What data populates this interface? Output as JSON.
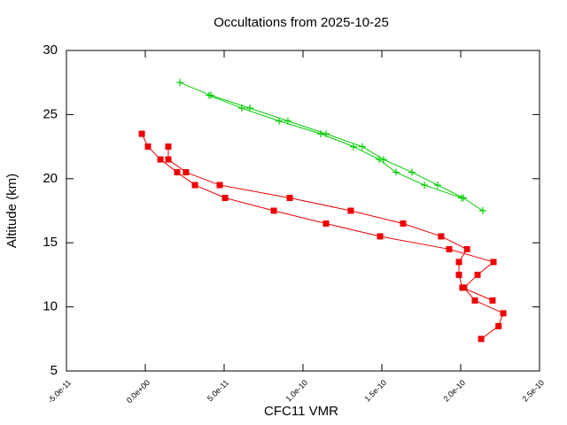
{
  "chart_data": {
    "type": "line",
    "title": "Occultations from 2025-10-25",
    "x_label": "CFC11 VMR",
    "y_label": "Altitude (km)",
    "xlim": [
      -5e-11,
      2.5e-10
    ],
    "xticks": [
      {
        "value": -5e-11,
        "label": "-5.0e-11"
      },
      {
        "value": 0,
        "label": "0.0e+00"
      },
      {
        "value": 5e-11,
        "label": "5.0e-11"
      },
      {
        "value": 1e-10,
        "label": "1.0e-10"
      },
      {
        "value": 1.5e-10,
        "label": "1.5e-10"
      },
      {
        "value": 2e-10,
        "label": "2.0e-10"
      },
      {
        "value": 2.5e-10,
        "label": "2.5e-10"
      }
    ],
    "ylim": [
      5,
      30
    ],
    "yticks": [
      5,
      10,
      15,
      20,
      25,
      30
    ],
    "grid": false,
    "series": [
      {
        "color": "#ee0000",
        "marker": "square",
        "x": [
          -2.2e-12,
          1.7e-12,
          9.6e-12,
          2.02e-11,
          3.15e-11,
          5.06e-11,
          8.15e-11,
          1.146e-10,
          1.489e-10,
          1.927e-10,
          2.208e-10,
          2.107e-10,
          2.022e-10,
          2.09e-10,
          2.27e-10,
          2.24e-10,
          2.13e-10
        ],
        "values": [
          23.5,
          22.5,
          21.5,
          20.5,
          19.5,
          18.5,
          17.5,
          16.5,
          15.5,
          14.5,
          13.5,
          12.5,
          11.5,
          10.5,
          9.5,
          8.5,
          7.5
        ]
      },
      {
        "color": "#ee0000",
        "marker": "square",
        "x": [
          1.46e-11,
          1.46e-11,
          2.58e-11,
          4.72e-11,
          9.16e-11,
          1.303e-10,
          1.635e-10,
          1.876e-10,
          2.04e-10,
          1.989e-10,
          1.989e-10,
          2.011e-10,
          2.202e-10
        ],
        "values": [
          22.5,
          21.5,
          20.5,
          19.5,
          18.5,
          17.5,
          16.5,
          15.5,
          14.5,
          13.5,
          12.5,
          11.5,
          10.5
        ]
      },
      {
        "color": "#00cc00",
        "marker": "plus",
        "x": [
          2.19e-11,
          4.16e-11,
          6.63e-11,
          9.04e-11,
          1.146e-10,
          1.376e-10,
          1.511e-10,
          1.691e-10,
          1.854e-10,
          2.017e-10,
          2.14e-10
        ],
        "values": [
          27.5,
          26.5,
          25.5,
          24.5,
          23.5,
          22.5,
          21.5,
          20.5,
          19.5,
          18.5,
          17.5
        ]
      },
      {
        "color": "#00cc00",
        "marker": "plus",
        "x": [
          4.04e-11,
          6.12e-11,
          8.48e-11,
          1.112e-10,
          1.32e-10,
          1.483e-10,
          1.59e-10,
          1.77e-10,
          2.006e-10
        ],
        "values": [
          26.5,
          25.5,
          24.5,
          23.5,
          22.5,
          21.5,
          20.5,
          19.5,
          18.5
        ]
      }
    ]
  }
}
